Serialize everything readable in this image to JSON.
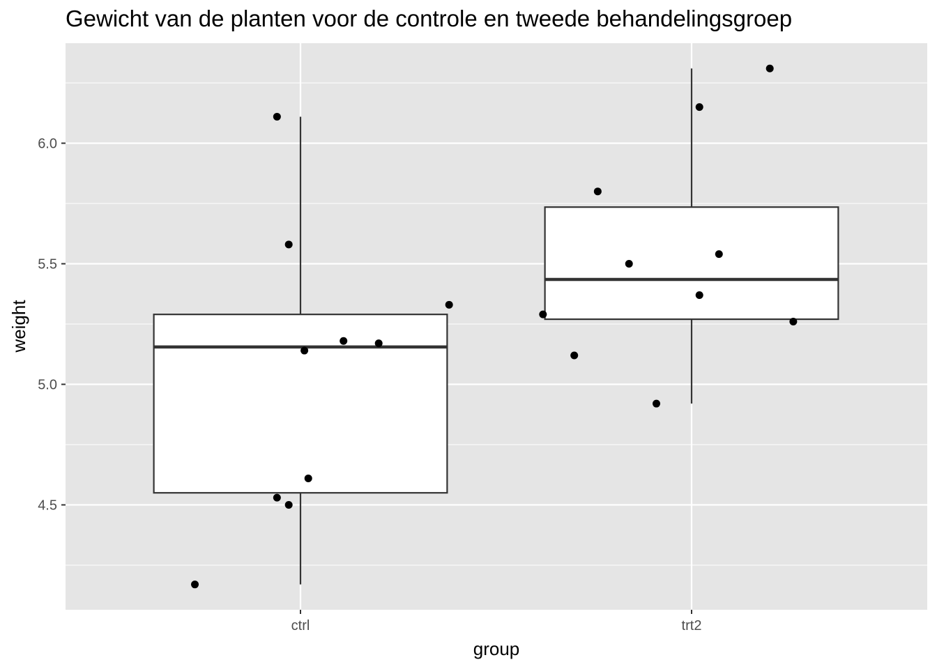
{
  "chart_data": {
    "type": "box",
    "title": "Gewicht van de planten voor de controle en tweede behandelingsgroep",
    "xlabel": "group",
    "ylabel": "weight",
    "categories": [
      "ctrl",
      "trt2"
    ],
    "ylim": [
      4.0,
      6.4
    ],
    "yticks": [
      4.5,
      5.0,
      5.5,
      6.0
    ],
    "yticklabels": [
      "4.5",
      "5.0",
      "5.5",
      "6.0"
    ],
    "grid": true,
    "background": "#e5e5e5",
    "boxes": [
      {
        "name": "ctrl",
        "whisker_low": 4.17,
        "q1": 4.55,
        "median": 5.155,
        "q3": 5.29,
        "whisker_high": 6.11
      },
      {
        "name": "trt2",
        "whisker_low": 4.92,
        "q1": 5.27,
        "median": 5.435,
        "q3": 5.735,
        "whisker_high": 6.31
      }
    ],
    "points": [
      {
        "group": "ctrl",
        "jitter": -0.27,
        "y": 4.17
      },
      {
        "group": "ctrl",
        "jitter": -0.06,
        "y": 6.11
      },
      {
        "group": "ctrl",
        "jitter": -0.03,
        "y": 5.58
      },
      {
        "group": "ctrl",
        "jitter": 0.01,
        "y": 5.14
      },
      {
        "group": "ctrl",
        "jitter": 0.11,
        "y": 5.18
      },
      {
        "group": "ctrl",
        "jitter": 0.2,
        "y": 5.17
      },
      {
        "group": "ctrl",
        "jitter": 0.38,
        "y": 5.33
      },
      {
        "group": "ctrl",
        "jitter": 0.02,
        "y": 4.61
      },
      {
        "group": "ctrl",
        "jitter": -0.06,
        "y": 4.53
      },
      {
        "group": "ctrl",
        "jitter": -0.03,
        "y": 4.5
      },
      {
        "group": "trt2",
        "jitter": -0.38,
        "y": 5.29
      },
      {
        "group": "trt2",
        "jitter": -0.3,
        "y": 5.12
      },
      {
        "group": "trt2",
        "jitter": -0.24,
        "y": 5.8
      },
      {
        "group": "trt2",
        "jitter": -0.16,
        "y": 5.5
      },
      {
        "group": "trt2",
        "jitter": -0.09,
        "y": 4.92
      },
      {
        "group": "trt2",
        "jitter": 0.02,
        "y": 6.15
      },
      {
        "group": "trt2",
        "jitter": 0.02,
        "y": 5.37
      },
      {
        "group": "trt2",
        "jitter": 0.07,
        "y": 5.54
      },
      {
        "group": "trt2",
        "jitter": 0.2,
        "y": 6.31
      },
      {
        "group": "trt2",
        "jitter": 0.26,
        "y": 5.26
      }
    ]
  }
}
